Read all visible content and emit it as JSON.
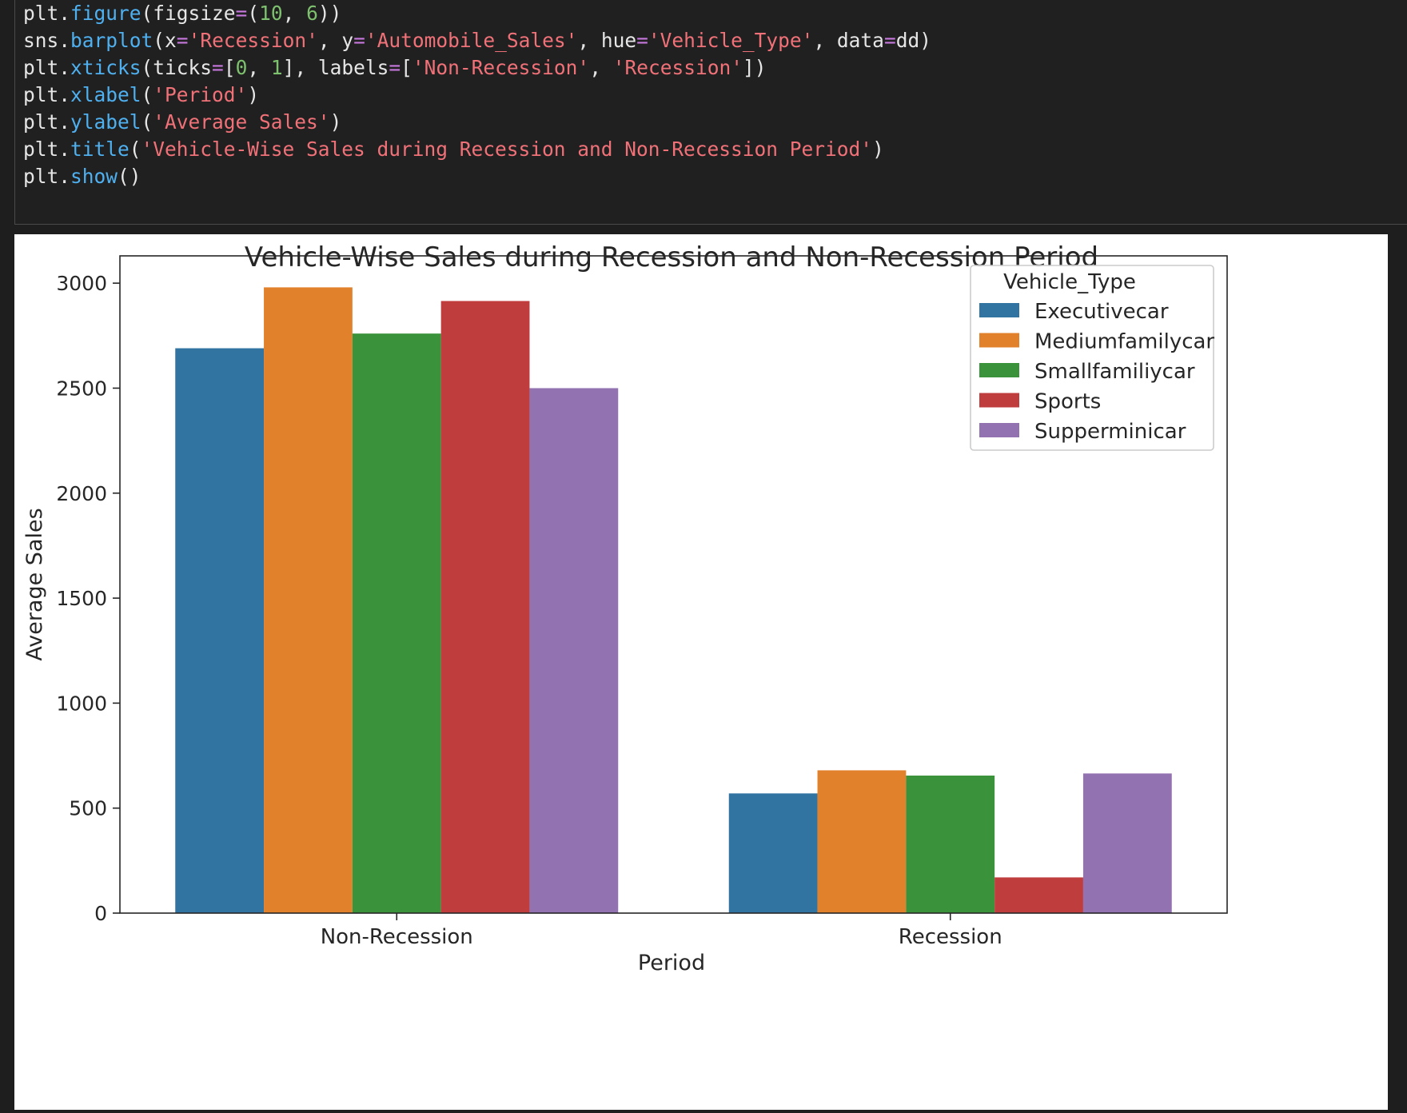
{
  "code_cell": {
    "lines": [
      [
        {
          "t": "plt.",
          "c": "plain"
        },
        {
          "t": "figure",
          "c": "fn"
        },
        {
          "t": "(figsize",
          "c": "plain"
        },
        {
          "t": "=",
          "c": "op"
        },
        {
          "t": "(",
          "c": "plain"
        },
        {
          "t": "10",
          "c": "num"
        },
        {
          "t": ", ",
          "c": "plain"
        },
        {
          "t": "6",
          "c": "num"
        },
        {
          "t": "))",
          "c": "plain"
        }
      ],
      [
        {
          "t": "sns.",
          "c": "plain"
        },
        {
          "t": "barplot",
          "c": "fn"
        },
        {
          "t": "(x",
          "c": "plain"
        },
        {
          "t": "=",
          "c": "op"
        },
        {
          "t": "'Recession'",
          "c": "str"
        },
        {
          "t": ", y",
          "c": "plain"
        },
        {
          "t": "=",
          "c": "op"
        },
        {
          "t": "'Automobile_Sales'",
          "c": "str"
        },
        {
          "t": ", hue",
          "c": "plain"
        },
        {
          "t": "=",
          "c": "op"
        },
        {
          "t": "'Vehicle_Type'",
          "c": "str"
        },
        {
          "t": ", data",
          "c": "plain"
        },
        {
          "t": "=",
          "c": "op"
        },
        {
          "t": "dd)",
          "c": "plain"
        }
      ],
      [
        {
          "t": "plt.",
          "c": "plain"
        },
        {
          "t": "xticks",
          "c": "fn"
        },
        {
          "t": "(ticks",
          "c": "plain"
        },
        {
          "t": "=",
          "c": "op"
        },
        {
          "t": "[",
          "c": "plain"
        },
        {
          "t": "0",
          "c": "num"
        },
        {
          "t": ", ",
          "c": "plain"
        },
        {
          "t": "1",
          "c": "num"
        },
        {
          "t": "], labels",
          "c": "plain"
        },
        {
          "t": "=",
          "c": "op"
        },
        {
          "t": "[",
          "c": "plain"
        },
        {
          "t": "'Non-Recession'",
          "c": "str"
        },
        {
          "t": ", ",
          "c": "plain"
        },
        {
          "t": "'Recession'",
          "c": "str"
        },
        {
          "t": "])",
          "c": "plain"
        }
      ],
      [
        {
          "t": "plt.",
          "c": "plain"
        },
        {
          "t": "xlabel",
          "c": "fn"
        },
        {
          "t": "(",
          "c": "plain"
        },
        {
          "t": "'Period'",
          "c": "str"
        },
        {
          "t": ")",
          "c": "plain"
        }
      ],
      [
        {
          "t": "plt.",
          "c": "plain"
        },
        {
          "t": "ylabel",
          "c": "fn"
        },
        {
          "t": "(",
          "c": "plain"
        },
        {
          "t": "'Average Sales'",
          "c": "str"
        },
        {
          "t": ")",
          "c": "plain"
        }
      ],
      [
        {
          "t": "plt.",
          "c": "plain"
        },
        {
          "t": "title",
          "c": "fn"
        },
        {
          "t": "(",
          "c": "plain"
        },
        {
          "t": "'Vehicle-Wise Sales during Recession and Non-Recession Period'",
          "c": "str"
        },
        {
          "t": ")",
          "c": "plain"
        }
      ],
      [
        {
          "t": "plt.",
          "c": "plain"
        },
        {
          "t": "show",
          "c": "fn"
        },
        {
          "t": "()",
          "c": "plain"
        }
      ]
    ]
  },
  "colors": {
    "fn": "#4fb0f0",
    "str": "#f07178",
    "num": "#7ec16e",
    "op": "#c678dd",
    "plain": "#e6e6e6"
  },
  "chart_data": {
    "type": "bar",
    "title": "Vehicle-Wise Sales during Recession and Non-Recession Period",
    "xlabel": "Period",
    "ylabel": "Average Sales",
    "categories": [
      "Non-Recession",
      "Recession"
    ],
    "ylim": [
      0,
      3130
    ],
    "yticks": [
      0,
      500,
      1000,
      1500,
      2000,
      2500,
      3000
    ],
    "grid": false,
    "legend": {
      "title": "Vehicle_Type",
      "placement": "top-right"
    },
    "series": [
      {
        "name": "Executivecar",
        "color": "#3274a1",
        "values": [
          2690,
          570
        ]
      },
      {
        "name": "Mediumfamilycar",
        "color": "#e1812c",
        "values": [
          2980,
          680
        ]
      },
      {
        "name": "Smallfamiliycar",
        "color": "#3a923a",
        "values": [
          2760,
          655
        ]
      },
      {
        "name": "Sports",
        "color": "#c03d3e",
        "values": [
          2915,
          170
        ]
      },
      {
        "name": "Supperminicar",
        "color": "#9372b2",
        "values": [
          2500,
          665
        ]
      }
    ]
  }
}
